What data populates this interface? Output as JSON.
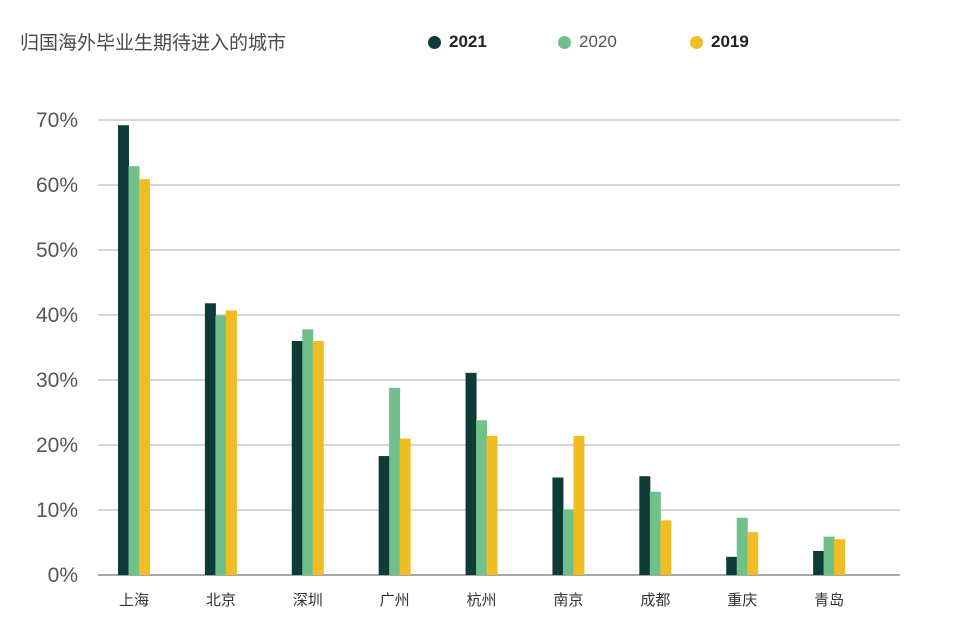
{
  "chart_data": {
    "type": "bar",
    "title": "归国海外毕业生期待进入的城市",
    "categories": [
      "上海",
      "北京",
      "深圳",
      "广州",
      "杭州",
      "南京",
      "成都",
      "重庆",
      "青岛"
    ],
    "series": [
      {
        "name": "2021",
        "color": "#0e3b37",
        "values": [
          69.2,
          41.8,
          36.0,
          18.3,
          31.1,
          15.0,
          15.2,
          2.8,
          3.7
        ]
      },
      {
        "name": "2020",
        "color": "#6fc189",
        "values": [
          62.9,
          39.9,
          37.8,
          28.8,
          23.8,
          10.1,
          12.8,
          8.8,
          5.9
        ]
      },
      {
        "name": "2019",
        "color": "#f0bd25",
        "values": [
          60.9,
          40.7,
          36.0,
          21.0,
          21.4,
          21.4,
          8.4,
          6.6,
          5.5
        ]
      }
    ],
    "yticks": [
      "0%",
      "10%",
      "20%",
      "30%",
      "40%",
      "50%",
      "60%",
      "70%"
    ],
    "ylim": [
      0,
      70
    ],
    "grid": true,
    "legend_position": "top"
  }
}
